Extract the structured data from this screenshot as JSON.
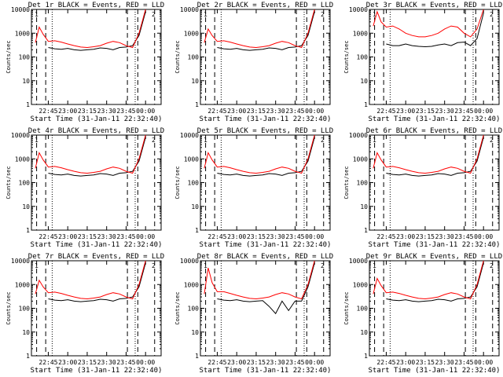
{
  "chart_data": [
    {
      "type": "line",
      "title": "Det 1r BLACK = Events, RED = LLD",
      "xlabel": "Start Time (31-Jan-11 22:32:40)",
      "ylabel": "Counts/sec",
      "ylim": [
        1,
        10000
      ],
      "yscale": "log",
      "yticks": [
        "1",
        "10",
        "100",
        "1000",
        "10000"
      ],
      "xticks": [
        "22:45",
        "23:00",
        "23:15",
        "23:30",
        "23:45",
        "00:00"
      ],
      "colors": {
        "events": "#000000",
        "lld": "#ff0000"
      },
      "corner_marks": [
        "1",
        "2"
      ],
      "series": [
        {
          "name": "Events",
          "x": [
            "22:45",
            "22:50",
            "22:55",
            "23:00",
            "23:05",
            "23:10",
            "23:15",
            "23:20",
            "23:25",
            "23:30",
            "23:35",
            "23:40",
            "23:45",
            "23:50",
            "23:55",
            "00:00"
          ],
          "values": [
            250,
            220,
            210,
            230,
            200,
            190,
            200,
            210,
            240,
            230,
            200,
            250,
            260,
            300,
            800,
            8000
          ]
        },
        {
          "name": "LLD",
          "x": [
            "22:35",
            "22:38",
            "22:41",
            "22:45",
            "22:50",
            "22:55",
            "23:00",
            "23:05",
            "23:10",
            "23:15",
            "23:20",
            "23:25",
            "23:30",
            "23:35",
            "23:40",
            "23:45",
            "23:50",
            "23:55",
            "00:00"
          ],
          "values": [
            400,
            1800,
            900,
            450,
            480,
            420,
            350,
            300,
            260,
            250,
            270,
            300,
            380,
            450,
            400,
            300,
            250,
            1000,
            10000
          ]
        }
      ]
    },
    {
      "type": "line",
      "title": "Det 2r BLACK = Events, RED = LLD",
      "xlabel": "Start Time (31-Jan-11 22:32:40)",
      "ylabel": "Counts/sec",
      "ylim": [
        1,
        10000
      ],
      "yscale": "log",
      "yticks": [
        "1",
        "10",
        "100",
        "1000",
        "10000"
      ],
      "xticks": [
        "22:45",
        "23:00",
        "23:15",
        "23:30",
        "23:45",
        "00:00"
      ],
      "colors": {
        "events": "#000000",
        "lld": "#ff0000"
      },
      "corner_marks": [
        "1",
        "2"
      ],
      "series": [
        {
          "name": "Events",
          "x": [
            "22:45",
            "22:50",
            "22:55",
            "23:00",
            "23:05",
            "23:10",
            "23:15",
            "23:20",
            "23:25",
            "23:30",
            "23:35",
            "23:40",
            "23:45",
            "23:50",
            "23:55",
            "00:00"
          ],
          "values": [
            250,
            220,
            210,
            230,
            200,
            190,
            200,
            210,
            240,
            230,
            200,
            250,
            260,
            300,
            800,
            8000
          ]
        },
        {
          "name": "LLD",
          "x": [
            "22:35",
            "22:38",
            "22:41",
            "22:45",
            "22:50",
            "22:55",
            "23:00",
            "23:05",
            "23:10",
            "23:15",
            "23:20",
            "23:25",
            "23:30",
            "23:35",
            "23:40",
            "23:45",
            "23:50",
            "23:55",
            "00:00"
          ],
          "values": [
            400,
            1500,
            800,
            450,
            480,
            420,
            350,
            300,
            260,
            250,
            270,
            300,
            380,
            450,
            400,
            300,
            250,
            1000,
            10000
          ]
        }
      ]
    },
    {
      "type": "line",
      "title": "Det 3r BLACK = Events, RED = LLD",
      "xlabel": "Start Time (31-Jan-11 22:32:40)",
      "ylabel": "Counts/sec",
      "ylim": [
        1,
        10000
      ],
      "yscale": "log",
      "yticks": [
        "1",
        "10",
        "100",
        "1000",
        "10000"
      ],
      "xticks": [
        "22:45",
        "23:00",
        "23:15",
        "23:30",
        "23:45",
        "00:00"
      ],
      "colors": {
        "events": "#000000",
        "lld": "#ff0000"
      },
      "corner_marks": [
        "1",
        "2"
      ],
      "series": [
        {
          "name": "Events",
          "x": [
            "22:45",
            "22:50",
            "22:55",
            "23:00",
            "23:05",
            "23:10",
            "23:15",
            "23:20",
            "23:25",
            "23:30",
            "23:35",
            "23:40",
            "23:45",
            "23:50",
            "23:55",
            "00:00"
          ],
          "values": [
            350,
            300,
            300,
            350,
            300,
            280,
            270,
            280,
            320,
            350,
            300,
            400,
            420,
            300,
            600,
            7000
          ]
        },
        {
          "name": "LLD",
          "x": [
            "22:35",
            "22:38",
            "22:41",
            "22:45",
            "22:50",
            "22:55",
            "23:00",
            "23:05",
            "23:10",
            "23:15",
            "23:20",
            "23:25",
            "23:30",
            "23:35",
            "23:40",
            "23:45",
            "23:50",
            "23:55",
            "00:00"
          ],
          "values": [
            2000,
            8000,
            3000,
            1800,
            2000,
            1500,
            1000,
            800,
            700,
            700,
            800,
            1000,
            1500,
            2000,
            1800,
            1000,
            700,
            1500,
            10000
          ]
        }
      ]
    },
    {
      "type": "line",
      "title": "Det 4r BLACK = Events, RED = LLD",
      "xlabel": "Start Time (31-Jan-11 22:32:40)",
      "ylabel": "Counts/sec",
      "ylim": [
        1,
        10000
      ],
      "yscale": "log",
      "yticks": [
        "1",
        "10",
        "100",
        "1000",
        "10000"
      ],
      "xticks": [
        "22:45",
        "23:00",
        "23:15",
        "23:30",
        "23:45",
        "00:00"
      ],
      "colors": {
        "events": "#000000",
        "lld": "#ff0000"
      },
      "corner_marks": [
        "1",
        "2"
      ],
      "series": [
        {
          "name": "Events",
          "x": [
            "22:45",
            "22:50",
            "22:55",
            "23:00",
            "23:05",
            "23:10",
            "23:15",
            "23:20",
            "23:25",
            "23:30",
            "23:35",
            "23:40",
            "23:45",
            "23:50",
            "23:55",
            "00:00"
          ],
          "values": [
            250,
            220,
            210,
            230,
            200,
            190,
            200,
            210,
            240,
            230,
            200,
            250,
            260,
            300,
            800,
            8000
          ]
        },
        {
          "name": "LLD",
          "x": [
            "22:35",
            "22:38",
            "22:41",
            "22:45",
            "22:50",
            "22:55",
            "23:00",
            "23:05",
            "23:10",
            "23:15",
            "23:20",
            "23:25",
            "23:30",
            "23:35",
            "23:40",
            "23:45",
            "23:50",
            "23:55",
            "00:00"
          ],
          "values": [
            400,
            1800,
            900,
            450,
            480,
            420,
            350,
            300,
            260,
            250,
            270,
            300,
            380,
            450,
            400,
            300,
            250,
            1000,
            10000
          ]
        }
      ]
    },
    {
      "type": "line",
      "title": "Det 5r BLACK = Events, RED = LLD",
      "xlabel": "Start Time (31-Jan-11 22:32:40)",
      "ylabel": "Counts/sec",
      "ylim": [
        1,
        10000
      ],
      "yscale": "log",
      "yticks": [
        "1",
        "10",
        "100",
        "1000",
        "10000"
      ],
      "xticks": [
        "22:45",
        "23:00",
        "23:15",
        "23:30",
        "23:45",
        "00:00"
      ],
      "colors": {
        "events": "#000000",
        "lld": "#ff0000"
      },
      "corner_marks": [
        "1",
        "2"
      ],
      "series": [
        {
          "name": "Events",
          "x": [
            "22:45",
            "22:50",
            "22:55",
            "23:00",
            "23:05",
            "23:10",
            "23:15",
            "23:20",
            "23:25",
            "23:30",
            "23:35",
            "23:40",
            "23:45",
            "23:50",
            "23:55",
            "00:00"
          ],
          "values": [
            250,
            220,
            210,
            230,
            200,
            190,
            200,
            210,
            240,
            230,
            200,
            250,
            260,
            300,
            800,
            8000
          ]
        },
        {
          "name": "LLD",
          "x": [
            "22:35",
            "22:38",
            "22:41",
            "22:45",
            "22:50",
            "22:55",
            "23:00",
            "23:05",
            "23:10",
            "23:15",
            "23:20",
            "23:25",
            "23:30",
            "23:35",
            "23:40",
            "23:45",
            "23:50",
            "23:55",
            "00:00"
          ],
          "values": [
            400,
            1800,
            900,
            450,
            480,
            420,
            350,
            300,
            260,
            250,
            270,
            300,
            380,
            450,
            400,
            300,
            250,
            1000,
            10000
          ]
        }
      ]
    },
    {
      "type": "line",
      "title": "Det 6r BLACK = Events, RED = LLD",
      "xlabel": "Start Time (31-Jan-11 22:32:40)",
      "ylabel": "Counts/sec",
      "ylim": [
        1,
        10000
      ],
      "yscale": "log",
      "yticks": [
        "1",
        "10",
        "100",
        "1000",
        "10000"
      ],
      "xticks": [
        "22:45",
        "23:00",
        "23:15",
        "23:30",
        "23:45",
        "00:00"
      ],
      "colors": {
        "events": "#000000",
        "lld": "#ff0000"
      },
      "corner_marks": [
        "1",
        "2"
      ],
      "series": [
        {
          "name": "Events",
          "x": [
            "22:45",
            "22:50",
            "22:55",
            "23:00",
            "23:05",
            "23:10",
            "23:15",
            "23:20",
            "23:25",
            "23:30",
            "23:35",
            "23:40",
            "23:45",
            "23:50",
            "23:55",
            "00:00"
          ],
          "values": [
            250,
            220,
            210,
            230,
            200,
            190,
            200,
            210,
            240,
            230,
            200,
            250,
            260,
            300,
            800,
            8000
          ]
        },
        {
          "name": "LLD",
          "x": [
            "22:35",
            "22:38",
            "22:41",
            "22:45",
            "22:50",
            "22:55",
            "23:00",
            "23:05",
            "23:10",
            "23:15",
            "23:20",
            "23:25",
            "23:30",
            "23:35",
            "23:40",
            "23:45",
            "23:50",
            "23:55",
            "00:00"
          ],
          "values": [
            400,
            1800,
            900,
            450,
            480,
            420,
            350,
            300,
            260,
            250,
            270,
            300,
            380,
            450,
            400,
            300,
            250,
            1000,
            10000
          ]
        }
      ]
    },
    {
      "type": "line",
      "title": "Det 7r BLACK = Events, RED = LLD",
      "xlabel": "Start Time (31-Jan-11 22:32:40)",
      "ylabel": "Counts/sec",
      "ylim": [
        1,
        10000
      ],
      "yscale": "log",
      "yticks": [
        "1",
        "10",
        "100",
        "1000",
        "10000"
      ],
      "xticks": [
        "22:45",
        "23:00",
        "23:15",
        "23:30",
        "23:45",
        "00:00"
      ],
      "colors": {
        "events": "#000000",
        "lld": "#ff0000"
      },
      "corner_marks": [
        "1",
        "2"
      ],
      "series": [
        {
          "name": "Events",
          "x": [
            "22:45",
            "22:50",
            "22:55",
            "23:00",
            "23:05",
            "23:10",
            "23:15",
            "23:20",
            "23:25",
            "23:30",
            "23:35",
            "23:40",
            "23:45",
            "23:50",
            "23:55",
            "00:00"
          ],
          "values": [
            250,
            220,
            210,
            230,
            200,
            190,
            200,
            210,
            240,
            230,
            200,
            250,
            260,
            300,
            800,
            8000
          ]
        },
        {
          "name": "LLD",
          "x": [
            "22:35",
            "22:38",
            "22:41",
            "22:45",
            "22:50",
            "22:55",
            "23:00",
            "23:05",
            "23:10",
            "23:15",
            "23:20",
            "23:25",
            "23:30",
            "23:35",
            "23:40",
            "23:45",
            "23:50",
            "23:55",
            "00:00"
          ],
          "values": [
            400,
            1500,
            800,
            450,
            480,
            420,
            350,
            300,
            260,
            250,
            270,
            300,
            380,
            450,
            400,
            300,
            250,
            1000,
            10000
          ]
        }
      ]
    },
    {
      "type": "line",
      "title": "Det 8r BLACK = Events, RED = LLD",
      "xlabel": "Start Time (31-Jan-11 22:32:40)",
      "ylabel": "Counts/sec",
      "ylim": [
        1,
        10000
      ],
      "yscale": "log",
      "yticks": [
        "1",
        "10",
        "100",
        "1000",
        "10000"
      ],
      "xticks": [
        "22:45",
        "23:00",
        "23:15",
        "23:30",
        "23:45",
        "00:00"
      ],
      "colors": {
        "events": "#000000",
        "lld": "#ff0000"
      },
      "corner_marks": [
        "1",
        "2"
      ],
      "series": [
        {
          "name": "Events",
          "x": [
            "22:45",
            "22:50",
            "22:55",
            "23:00",
            "23:05",
            "23:10",
            "23:15",
            "23:20",
            "23:25",
            "23:30",
            "23:35",
            "23:40",
            "23:45",
            "23:50",
            "23:55",
            "00:00"
          ],
          "values": [
            250,
            220,
            210,
            230,
            200,
            190,
            200,
            210,
            120,
            60,
            200,
            80,
            200,
            200,
            800,
            8000
          ]
        },
        {
          "name": "LLD",
          "x": [
            "22:35",
            "22:38",
            "22:41",
            "22:45",
            "22:50",
            "22:55",
            "23:00",
            "23:05",
            "23:10",
            "23:15",
            "23:20",
            "23:25",
            "23:30",
            "23:35",
            "23:40",
            "23:45",
            "23:50",
            "23:55",
            "00:00"
          ],
          "values": [
            400,
            5000,
            1200,
            500,
            500,
            420,
            350,
            300,
            260,
            250,
            270,
            300,
            380,
            450,
            400,
            300,
            250,
            1000,
            10000
          ]
        }
      ]
    },
    {
      "type": "line",
      "title": "Det 9r BLACK = Events, RED = LLD",
      "xlabel": "Start Time (31-Jan-11 22:32:40)",
      "ylabel": "Counts/sec",
      "ylim": [
        1,
        10000
      ],
      "yscale": "log",
      "yticks": [
        "1",
        "10",
        "100",
        "1000",
        "10000"
      ],
      "xticks": [
        "22:45",
        "23:00",
        "23:15",
        "23:30",
        "23:45",
        "00:00"
      ],
      "colors": {
        "events": "#000000",
        "lld": "#ff0000"
      },
      "corner_marks": [
        "1",
        "2"
      ],
      "series": [
        {
          "name": "Events",
          "x": [
            "22:45",
            "22:50",
            "22:55",
            "23:00",
            "23:05",
            "23:10",
            "23:15",
            "23:20",
            "23:25",
            "23:30",
            "23:35",
            "23:40",
            "23:45",
            "23:50",
            "23:55",
            "00:00"
          ],
          "values": [
            250,
            220,
            210,
            230,
            200,
            190,
            200,
            210,
            240,
            230,
            200,
            250,
            260,
            300,
            800,
            8000
          ]
        },
        {
          "name": "LLD",
          "x": [
            "22:35",
            "22:38",
            "22:41",
            "22:45",
            "22:50",
            "22:55",
            "23:00",
            "23:05",
            "23:10",
            "23:15",
            "23:20",
            "23:25",
            "23:30",
            "23:35",
            "23:40",
            "23:45",
            "23:50",
            "23:55",
            "00:00"
          ],
          "values": [
            400,
            1800,
            900,
            450,
            480,
            420,
            350,
            300,
            260,
            250,
            270,
            300,
            380,
            450,
            400,
            300,
            250,
            1000,
            10000
          ]
        }
      ]
    }
  ]
}
